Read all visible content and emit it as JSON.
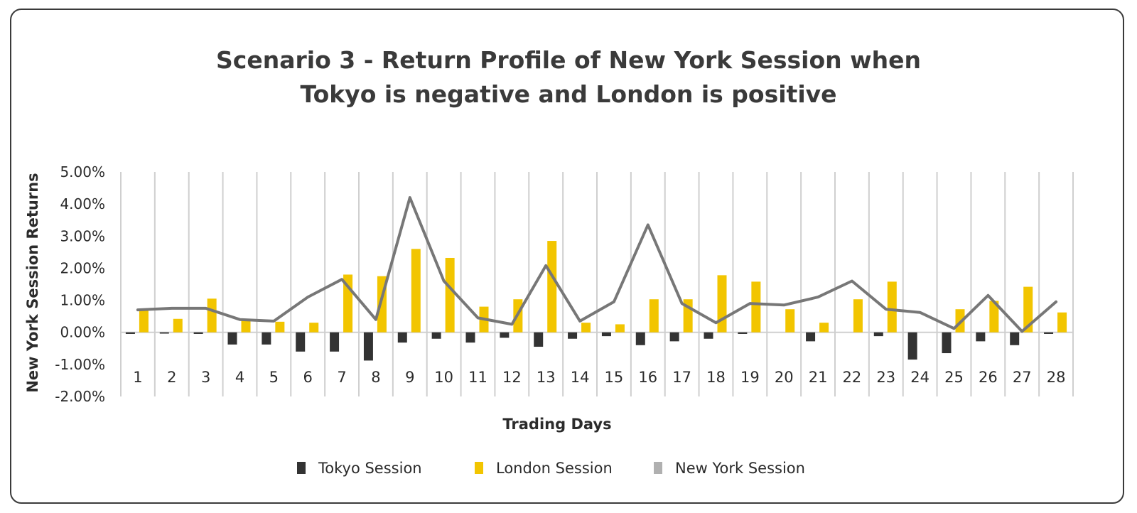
{
  "chart_data": {
    "type": "bar",
    "title_lines": [
      "Scenario 3 - Return Profile of New York Session when",
      "Tokyo is negative and London is positive"
    ],
    "xlabel": "Trading Days",
    "ylabel": "New York Session Returns",
    "ylim": [
      -2,
      5
    ],
    "yticks": [
      "5.00%",
      "4.00%",
      "3.00%",
      "2.00%",
      "1.00%",
      "0.00%",
      "-1.00%",
      "-2.00%"
    ],
    "ytick_values": [
      5,
      4,
      3,
      2,
      1,
      0,
      -1,
      -2
    ],
    "categories": [
      "1",
      "2",
      "3",
      "4",
      "5",
      "6",
      "7",
      "8",
      "9",
      "10",
      "11",
      "12",
      "13",
      "14",
      "15",
      "16",
      "17",
      "18",
      "19",
      "20",
      "21",
      "22",
      "23",
      "24",
      "25",
      "26",
      "27",
      "28"
    ],
    "grid": "vertical",
    "legend_position": "bottom",
    "series": [
      {
        "name": "Tokyo Session",
        "kind": "bar",
        "color": "#333333",
        "values": [
          -0.05,
          -0.04,
          -0.05,
          -0.38,
          -0.38,
          -0.6,
          -0.6,
          -0.88,
          -0.32,
          -0.2,
          -0.32,
          -0.17,
          -0.45,
          -0.2,
          -0.12,
          -0.4,
          -0.28,
          -0.2,
          -0.05,
          0,
          -0.28,
          0,
          -0.12,
          -0.85,
          -0.65,
          -0.28,
          -0.4,
          -0.05
        ]
      },
      {
        "name": "London Session",
        "kind": "bar",
        "color": "#F2C500",
        "values": [
          0.7,
          0.42,
          1.05,
          0.38,
          0.33,
          0.3,
          1.8,
          1.75,
          2.6,
          2.32,
          0.8,
          1.03,
          2.85,
          0.3,
          0.25,
          1.03,
          1.03,
          1.78,
          1.58,
          0.72,
          0.3,
          1.03,
          1.58,
          0,
          0.72,
          0.98,
          1.42,
          0.62
        ]
      },
      {
        "name": "New York Session",
        "kind": "line",
        "color": "#777777",
        "legend_color": "#B0B0B0",
        "values": [
          0.7,
          0.75,
          0.75,
          0.4,
          0.35,
          1.1,
          1.65,
          0.4,
          4.2,
          1.6,
          0.45,
          0.25,
          2.08,
          0.35,
          0.95,
          3.35,
          0.9,
          0.3,
          0.9,
          0.85,
          1.1,
          1.6,
          0.72,
          0.62,
          0.12,
          1.15,
          0.03,
          0.95
        ]
      }
    ]
  }
}
